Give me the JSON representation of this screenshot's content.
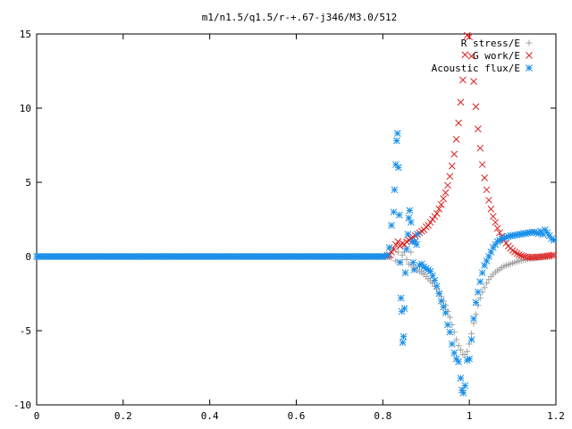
{
  "chart_data": {
    "type": "scatter",
    "title": "m1/n1.5/q1.5/r-+.67-j346/M3.0/512",
    "xlabel": "",
    "ylabel": "",
    "xlim": [
      0,
      1.2
    ],
    "ylim": [
      -10,
      15
    ],
    "x_ticks": [
      0,
      0.2,
      0.4,
      0.6,
      0.8,
      1,
      1.2
    ],
    "x_tick_labels": [
      "0",
      "0.2",
      "0.4",
      "0.6",
      "0.8",
      "1",
      "1.2"
    ],
    "y_ticks": [
      -10,
      -5,
      0,
      5,
      10,
      15
    ],
    "y_tick_labels": [
      "-10",
      "-5",
      "0",
      "5",
      "10",
      "15"
    ],
    "grid": false,
    "legend_position": "top-right",
    "series": [
      {
        "name": "R stress/E",
        "marker": "plus",
        "color": "#a0a0a0",
        "points": [
          [
            0.8,
            0.0
          ],
          [
            0.81,
            0.0
          ],
          [
            0.82,
            -0.05
          ],
          [
            0.825,
            0.5
          ],
          [
            0.83,
            -0.3
          ],
          [
            0.835,
            0.3
          ],
          [
            0.84,
            -0.4
          ],
          [
            0.845,
            0.1
          ],
          [
            0.85,
            0.3
          ],
          [
            0.855,
            -0.2
          ],
          [
            0.86,
            -0.5
          ],
          [
            0.865,
            0.3
          ],
          [
            0.87,
            -0.6
          ],
          [
            0.875,
            -0.8
          ],
          [
            0.88,
            -0.9
          ],
          [
            0.885,
            -1.0
          ],
          [
            0.89,
            -1.1
          ],
          [
            0.895,
            -1.2
          ],
          [
            0.9,
            -1.35
          ],
          [
            0.905,
            -1.5
          ],
          [
            0.91,
            -1.65
          ],
          [
            0.915,
            -1.8
          ],
          [
            0.92,
            -2.0
          ],
          [
            0.925,
            -2.2
          ],
          [
            0.93,
            -2.4
          ],
          [
            0.935,
            -2.7
          ],
          [
            0.94,
            -3.0
          ],
          [
            0.945,
            -3.3
          ],
          [
            0.95,
            -3.7
          ],
          [
            0.955,
            -4.1
          ],
          [
            0.96,
            -4.6
          ],
          [
            0.965,
            -5.1
          ],
          [
            0.97,
            -5.6
          ],
          [
            0.975,
            -6.0
          ],
          [
            0.98,
            -6.3
          ],
          [
            0.985,
            -6.6
          ],
          [
            0.99,
            -6.6
          ],
          [
            0.995,
            -6.4
          ],
          [
            1.0,
            -5.9
          ],
          [
            1.005,
            -5.2
          ],
          [
            1.01,
            -4.5
          ],
          [
            1.015,
            -3.9
          ],
          [
            1.02,
            -3.3
          ],
          [
            1.025,
            -2.8
          ],
          [
            1.03,
            -2.4
          ],
          [
            1.035,
            -2.1
          ],
          [
            1.04,
            -1.8
          ],
          [
            1.045,
            -1.55
          ],
          [
            1.05,
            -1.35
          ],
          [
            1.055,
            -1.2
          ],
          [
            1.06,
            -1.05
          ],
          [
            1.065,
            -0.95
          ],
          [
            1.07,
            -0.85
          ],
          [
            1.075,
            -0.75
          ],
          [
            1.08,
            -0.65
          ],
          [
            1.085,
            -0.6
          ],
          [
            1.09,
            -0.55
          ],
          [
            1.095,
            -0.5
          ],
          [
            1.1,
            -0.45
          ],
          [
            1.105,
            -0.4
          ],
          [
            1.11,
            -0.35
          ],
          [
            1.115,
            -0.3
          ],
          [
            1.12,
            -0.27
          ],
          [
            1.125,
            -0.24
          ],
          [
            1.13,
            -0.21
          ],
          [
            1.135,
            -0.18
          ],
          [
            1.14,
            -0.15
          ],
          [
            1.145,
            -0.13
          ],
          [
            1.15,
            -0.11
          ],
          [
            1.155,
            -0.09
          ],
          [
            1.16,
            -0.07
          ],
          [
            1.165,
            -0.05
          ],
          [
            1.17,
            -0.04
          ],
          [
            1.175,
            -0.03
          ],
          [
            1.18,
            -0.02
          ],
          [
            1.185,
            -0.01
          ],
          [
            1.19,
            0.0
          ]
        ]
      },
      {
        "name": "G work/E",
        "marker": "cross",
        "color": "#dd2222",
        "points": [
          [
            0.8,
            0.0
          ],
          [
            0.81,
            0.0
          ],
          [
            0.815,
            0.1
          ],
          [
            0.82,
            0.3
          ],
          [
            0.825,
            0.5
          ],
          [
            0.83,
            0.8
          ],
          [
            0.835,
            1.0
          ],
          [
            0.84,
            0.7
          ],
          [
            0.845,
            0.9
          ],
          [
            0.85,
            0.8
          ],
          [
            0.855,
            1.0
          ],
          [
            0.86,
            1.1
          ],
          [
            0.865,
            1.2
          ],
          [
            0.87,
            1.3
          ],
          [
            0.875,
            1.4
          ],
          [
            0.88,
            1.5
          ],
          [
            0.885,
            1.6
          ],
          [
            0.89,
            1.7
          ],
          [
            0.895,
            1.8
          ],
          [
            0.9,
            2.0
          ],
          [
            0.905,
            2.1
          ],
          [
            0.91,
            2.3
          ],
          [
            0.915,
            2.5
          ],
          [
            0.92,
            2.7
          ],
          [
            0.925,
            2.9
          ],
          [
            0.93,
            3.2
          ],
          [
            0.935,
            3.5
          ],
          [
            0.94,
            3.9
          ],
          [
            0.945,
            4.3
          ],
          [
            0.95,
            4.8
          ],
          [
            0.955,
            5.4
          ],
          [
            0.96,
            6.1
          ],
          [
            0.965,
            6.9
          ],
          [
            0.97,
            7.9
          ],
          [
            0.975,
            9.0
          ],
          [
            0.98,
            10.4
          ],
          [
            0.985,
            11.9
          ],
          [
            0.99,
            13.6
          ],
          [
            0.995,
            14.9
          ],
          [
            1.0,
            14.8
          ],
          [
            1.005,
            13.5
          ],
          [
            1.01,
            11.8
          ],
          [
            1.015,
            10.1
          ],
          [
            1.02,
            8.6
          ],
          [
            1.025,
            7.3
          ],
          [
            1.03,
            6.2
          ],
          [
            1.035,
            5.3
          ],
          [
            1.04,
            4.5
          ],
          [
            1.045,
            3.8
          ],
          [
            1.05,
            3.2
          ],
          [
            1.055,
            2.7
          ],
          [
            1.06,
            2.3
          ],
          [
            1.065,
            1.9
          ],
          [
            1.07,
            1.6
          ],
          [
            1.075,
            1.35
          ],
          [
            1.08,
            1.1
          ],
          [
            1.085,
            0.9
          ],
          [
            1.09,
            0.7
          ],
          [
            1.095,
            0.55
          ],
          [
            1.1,
            0.4
          ],
          [
            1.105,
            0.3
          ],
          [
            1.11,
            0.2
          ],
          [
            1.115,
            0.12
          ],
          [
            1.12,
            0.06
          ],
          [
            1.125,
            0.02
          ],
          [
            1.13,
            -0.02
          ],
          [
            1.135,
            -0.05
          ],
          [
            1.14,
            -0.06
          ],
          [
            1.145,
            -0.06
          ],
          [
            1.15,
            -0.05
          ],
          [
            1.155,
            -0.04
          ],
          [
            1.16,
            -0.03
          ],
          [
            1.165,
            -0.02
          ],
          [
            1.17,
            0.0
          ],
          [
            1.175,
            0.02
          ],
          [
            1.18,
            0.04
          ],
          [
            1.185,
            0.06
          ],
          [
            1.19,
            0.08
          ],
          [
            1.195,
            0.1
          ]
        ]
      },
      {
        "name": "Acoustic flux/E",
        "marker": "star",
        "color": "#1a8fe8",
        "points": [
          [
            0.805,
            0.0
          ],
          [
            0.81,
            0.1
          ],
          [
            0.815,
            0.6
          ],
          [
            0.82,
            2.1
          ],
          [
            0.825,
            3.0
          ],
          [
            0.827,
            4.5
          ],
          [
            0.83,
            6.2
          ],
          [
            0.832,
            7.8
          ],
          [
            0.834,
            8.3
          ],
          [
            0.836,
            6.0
          ],
          [
            0.838,
            2.8
          ],
          [
            0.84,
            -0.4
          ],
          [
            0.842,
            -2.8
          ],
          [
            0.844,
            -3.7
          ],
          [
            0.846,
            -5.8
          ],
          [
            0.848,
            -5.4
          ],
          [
            0.85,
            -3.5
          ],
          [
            0.852,
            -1.1
          ],
          [
            0.855,
            0.5
          ],
          [
            0.858,
            1.5
          ],
          [
            0.86,
            2.6
          ],
          [
            0.862,
            3.1
          ],
          [
            0.865,
            2.3
          ],
          [
            0.868,
            1.0
          ],
          [
            0.87,
            -0.4
          ],
          [
            0.872,
            -0.9
          ],
          [
            0.875,
            1.0
          ],
          [
            0.878,
            0.8
          ],
          [
            0.88,
            1.5
          ],
          [
            0.885,
            -0.6
          ],
          [
            0.89,
            -0.5
          ],
          [
            0.895,
            -0.7
          ],
          [
            0.9,
            -0.8
          ],
          [
            0.905,
            -0.9
          ],
          [
            0.91,
            -1.0
          ],
          [
            0.915,
            -1.3
          ],
          [
            0.92,
            -1.6
          ],
          [
            0.925,
            -2.0
          ],
          [
            0.93,
            -2.5
          ],
          [
            0.935,
            -3.0
          ],
          [
            0.94,
            -3.4
          ],
          [
            0.945,
            -3.8
          ],
          [
            0.95,
            -4.6
          ],
          [
            0.955,
            -5.1
          ],
          [
            0.96,
            -5.9
          ],
          [
            0.965,
            -6.5
          ],
          [
            0.97,
            -6.9
          ],
          [
            0.975,
            -7.1
          ],
          [
            0.98,
            -8.2
          ],
          [
            0.983,
            -9.0
          ],
          [
            0.986,
            -9.2
          ],
          [
            0.99,
            -8.7
          ],
          [
            0.995,
            -7.0
          ],
          [
            1.0,
            -6.9
          ],
          [
            1.005,
            -5.6
          ],
          [
            1.01,
            -4.2
          ],
          [
            1.015,
            -3.1
          ],
          [
            1.02,
            -2.4
          ],
          [
            1.025,
            -1.7
          ],
          [
            1.03,
            -1.1
          ],
          [
            1.035,
            -0.6
          ],
          [
            1.04,
            -0.3
          ],
          [
            1.045,
            0.0
          ],
          [
            1.05,
            0.3
          ],
          [
            1.055,
            0.6
          ],
          [
            1.06,
            0.8
          ],
          [
            1.065,
            1.0
          ],
          [
            1.07,
            1.1
          ],
          [
            1.075,
            1.2
          ],
          [
            1.08,
            1.25
          ],
          [
            1.085,
            1.3
          ],
          [
            1.09,
            1.35
          ],
          [
            1.095,
            1.4
          ],
          [
            1.1,
            1.4
          ],
          [
            1.105,
            1.45
          ],
          [
            1.11,
            1.45
          ],
          [
            1.115,
            1.5
          ],
          [
            1.12,
            1.5
          ],
          [
            1.125,
            1.55
          ],
          [
            1.13,
            1.55
          ],
          [
            1.135,
            1.6
          ],
          [
            1.14,
            1.6
          ],
          [
            1.145,
            1.65
          ],
          [
            1.15,
            1.65
          ],
          [
            1.155,
            1.6
          ],
          [
            1.16,
            1.55
          ],
          [
            1.165,
            1.7
          ],
          [
            1.17,
            1.5
          ],
          [
            1.175,
            1.8
          ],
          [
            1.18,
            1.6
          ],
          [
            1.185,
            1.4
          ],
          [
            1.19,
            1.2
          ],
          [
            1.195,
            1.1
          ]
        ],
        "baseline": {
          "x_start": 0.0,
          "x_end": 0.8,
          "step": 0.004,
          "y": 0.0
        }
      }
    ]
  }
}
